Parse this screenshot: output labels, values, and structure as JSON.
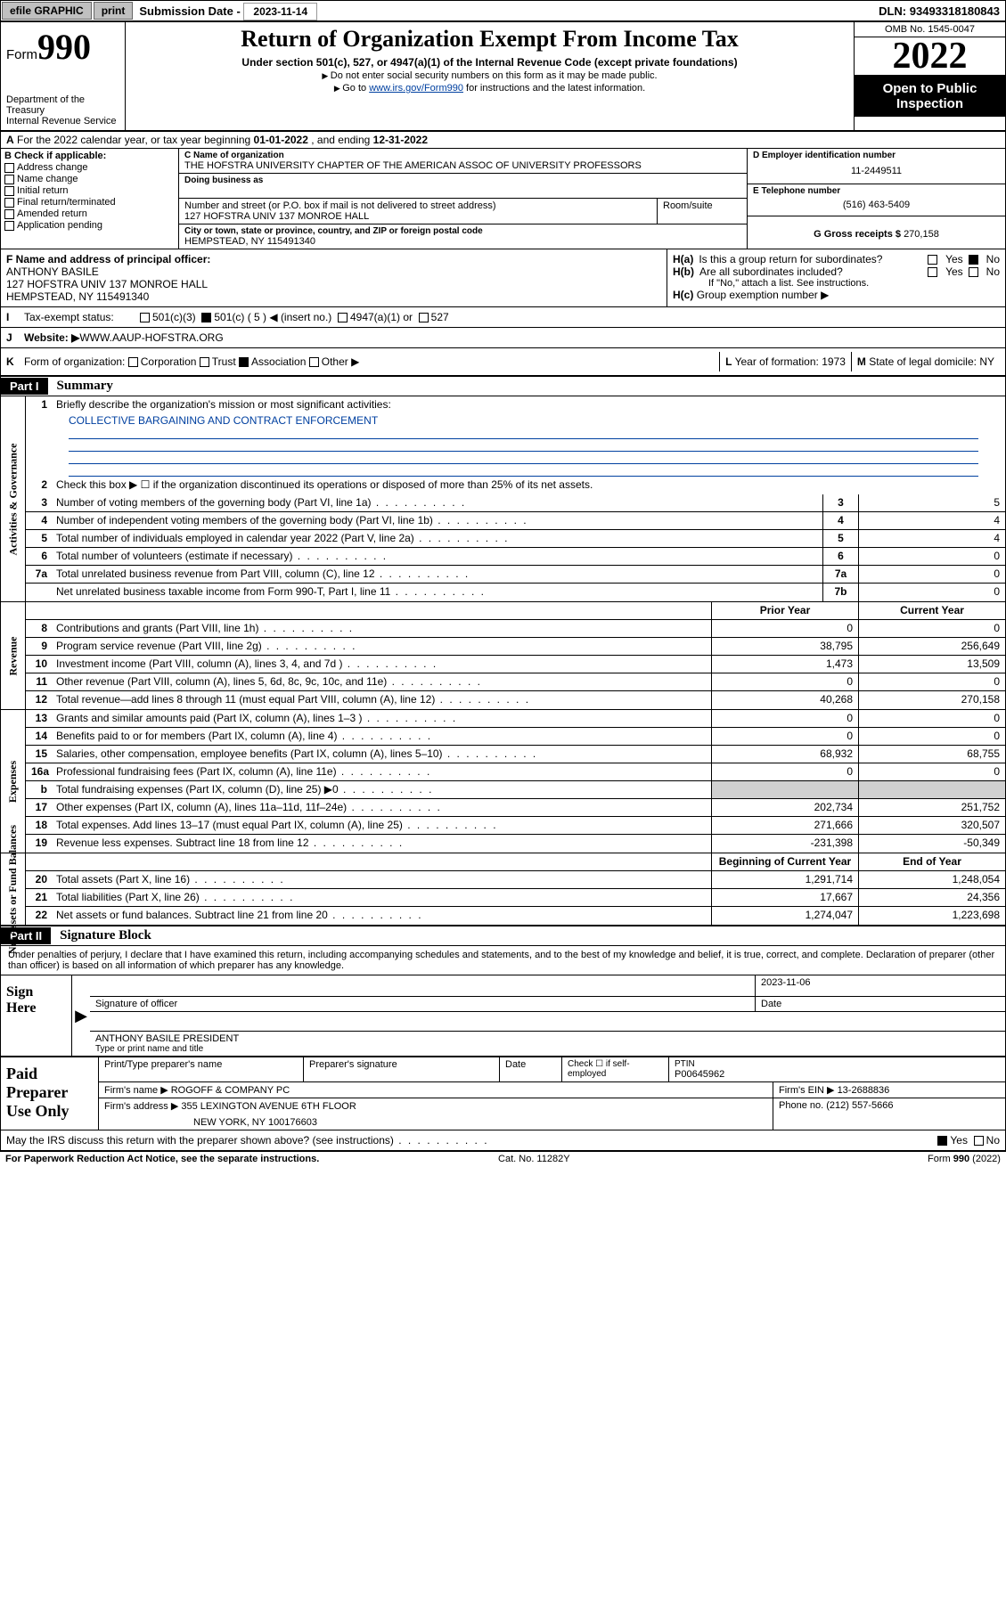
{
  "top": {
    "efile": "efile GRAPHIC",
    "print": "print",
    "sub_label": "Submission Date - ",
    "sub_date": "2023-11-14",
    "dln_label": "DLN: ",
    "dln": "93493318180843"
  },
  "header": {
    "form_label": "Form",
    "form_num": "990",
    "dept": "Department of the Treasury\nInternal Revenue Service",
    "title": "Return of Organization Exempt From Income Tax",
    "subtitle": "Under section 501(c), 527, or 4947(a)(1) of the Internal Revenue Code (except private foundations)",
    "note1": "Do not enter social security numbers on this form as it may be made public.",
    "note2_pre": "Go to ",
    "note2_link": "www.irs.gov/Form990",
    "note2_post": " for instructions and the latest information.",
    "omb": "OMB No. 1545-0047",
    "year": "2022",
    "otp": "Open to Public Inspection"
  },
  "line_a": {
    "prefix": "A",
    "text": "For the 2022 calendar year, or tax year beginning ",
    "begin": "01-01-2022",
    "mid": " , and ending ",
    "end": "12-31-2022"
  },
  "col_b": {
    "hdr": "B Check if applicable:",
    "items": [
      "Address change",
      "Name change",
      "Initial return",
      "Final return/terminated",
      "Amended return",
      "Application pending"
    ]
  },
  "col_c": {
    "name_lbl": "C Name of organization",
    "name": "THE HOFSTRA UNIVERSITY CHAPTER OF THE AMERICAN ASSOC OF UNIVERSITY PROFESSORS",
    "dba_lbl": "Doing business as",
    "addr_lbl": "Number and street (or P.O. box if mail is not delivered to street address)",
    "room_lbl": "Room/suite",
    "addr": "127 HOFSTRA UNIV 137 MONROE HALL",
    "city_lbl": "City or town, state or province, country, and ZIP or foreign postal code",
    "city": "HEMPSTEAD, NY  115491340"
  },
  "col_d": {
    "ein_lbl": "D Employer identification number",
    "ein": "11-2449511",
    "tel_lbl": "E Telephone number",
    "tel": "(516) 463-5409",
    "gross_lbl": "G Gross receipts $ ",
    "gross": "270,158"
  },
  "f": {
    "lbl": "F Name and address of principal officer:",
    "name": "ANTHONY BASILE",
    "addr1": "127 HOFSTRA UNIV 137 MONROE HALL",
    "addr2": "HEMPSTEAD, NY  115491340"
  },
  "h": {
    "a_lbl": "H(a)",
    "a_txt": "Is this a group return for subordinates?",
    "b_lbl": "H(b)",
    "b_txt": "Are all subordinates included?",
    "b_note": "If \"No,\" attach a list. See instructions.",
    "c_lbl": "H(c)",
    "c_txt": "Group exemption number ▶",
    "yes": "Yes",
    "no": "No"
  },
  "i": {
    "lbl": "I",
    "txt": "Tax-exempt status:",
    "o1": "501(c)(3)",
    "o2": "501(c) ( 5 ) ◀ (insert no.)",
    "o3": "4947(a)(1) or",
    "o4": "527"
  },
  "j": {
    "lbl": "J",
    "txt": "Website: ▶",
    "val": " WWW.AAUP-HOFSTRA.ORG"
  },
  "k": {
    "lbl": "K",
    "txt": "Form of organization:",
    "o1": "Corporation",
    "o2": "Trust",
    "o3": "Association",
    "o4": "Other ▶"
  },
  "l": {
    "lbl": "L",
    "txt": "Year of formation: ",
    "val": "1973"
  },
  "m": {
    "lbl": "M",
    "txt": "State of legal domicile: ",
    "val": "NY"
  },
  "p1": {
    "hdr": "Part I",
    "title": "Summary",
    "l1_lbl": "Briefly describe the organization's mission or most significant activities:",
    "l1_val": "COLLECTIVE BARGAINING AND CONTRACT ENFORCEMENT",
    "l2": "Check this box ▶ ☐  if the organization discontinued its operations or disposed of more than 25% of its net assets.",
    "side_ag": "Activities & Governance",
    "side_rev": "Revenue",
    "side_exp": "Expenses",
    "side_na": "Net Assets or Fund Balances",
    "rows_ag": [
      {
        "n": "3",
        "d": "Number of voting members of the governing body (Part VI, line 1a)",
        "box": "3",
        "v": "5"
      },
      {
        "n": "4",
        "d": "Number of independent voting members of the governing body (Part VI, line 1b)",
        "box": "4",
        "v": "4"
      },
      {
        "n": "5",
        "d": "Total number of individuals employed in calendar year 2022 (Part V, line 2a)",
        "box": "5",
        "v": "4"
      },
      {
        "n": "6",
        "d": "Total number of volunteers (estimate if necessary)",
        "box": "6",
        "v": "0"
      },
      {
        "n": "7a",
        "d": "Total unrelated business revenue from Part VIII, column (C), line 12",
        "box": "7a",
        "v": "0"
      },
      {
        "n": "",
        "d": "Net unrelated business taxable income from Form 990-T, Part I, line 11",
        "box": "7b",
        "v": "0"
      }
    ],
    "col_prior": "Prior Year",
    "col_current": "Current Year",
    "rows_rev": [
      {
        "n": "8",
        "d": "Contributions and grants (Part VIII, line 1h)",
        "p": "0",
        "c": "0"
      },
      {
        "n": "9",
        "d": "Program service revenue (Part VIII, line 2g)",
        "p": "38,795",
        "c": "256,649"
      },
      {
        "n": "10",
        "d": "Investment income (Part VIII, column (A), lines 3, 4, and 7d )",
        "p": "1,473",
        "c": "13,509"
      },
      {
        "n": "11",
        "d": "Other revenue (Part VIII, column (A), lines 5, 6d, 8c, 9c, 10c, and 11e)",
        "p": "0",
        "c": "0"
      },
      {
        "n": "12",
        "d": "Total revenue—add lines 8 through 11 (must equal Part VIII, column (A), line 12)",
        "p": "40,268",
        "c": "270,158"
      }
    ],
    "rows_exp": [
      {
        "n": "13",
        "d": "Grants and similar amounts paid (Part IX, column (A), lines 1–3 )",
        "p": "0",
        "c": "0"
      },
      {
        "n": "14",
        "d": "Benefits paid to or for members (Part IX, column (A), line 4)",
        "p": "0",
        "c": "0"
      },
      {
        "n": "15",
        "d": "Salaries, other compensation, employee benefits (Part IX, column (A), lines 5–10)",
        "p": "68,932",
        "c": "68,755"
      },
      {
        "n": "16a",
        "d": "Professional fundraising fees (Part IX, column (A), line 11e)",
        "p": "0",
        "c": "0"
      },
      {
        "n": "b",
        "d": "Total fundraising expenses (Part IX, column (D), line 25) ▶0",
        "p": "",
        "c": "",
        "gray": true
      },
      {
        "n": "17",
        "d": "Other expenses (Part IX, column (A), lines 11a–11d, 11f–24e)",
        "p": "202,734",
        "c": "251,752"
      },
      {
        "n": "18",
        "d": "Total expenses. Add lines 13–17 (must equal Part IX, column (A), line 25)",
        "p": "271,666",
        "c": "320,507"
      },
      {
        "n": "19",
        "d": "Revenue less expenses. Subtract line 18 from line 12",
        "p": "-231,398",
        "c": "-50,349"
      }
    ],
    "col_begin": "Beginning of Current Year",
    "col_end": "End of Year",
    "rows_na": [
      {
        "n": "20",
        "d": "Total assets (Part X, line 16)",
        "p": "1,291,714",
        "c": "1,248,054"
      },
      {
        "n": "21",
        "d": "Total liabilities (Part X, line 26)",
        "p": "17,667",
        "c": "24,356"
      },
      {
        "n": "22",
        "d": "Net assets or fund balances. Subtract line 21 from line 20",
        "p": "1,274,047",
        "c": "1,223,698"
      }
    ]
  },
  "p2": {
    "hdr": "Part II",
    "title": "Signature Block",
    "decl": "Under penalties of perjury, I declare that I have examined this return, including accompanying schedules and statements, and to the best of my knowledge and belief, it is true, correct, and complete. Declaration of preparer (other than officer) is based on all information of which preparer has any knowledge."
  },
  "sign": {
    "lbl": "Sign Here",
    "sig_lbl": "Signature of officer",
    "date_lbl": "Date",
    "date": "2023-11-06",
    "name": "ANTHONY BASILE PRESIDENT",
    "name_lbl": "Type or print name and title"
  },
  "prep": {
    "lbl": "Paid Preparer Use Only",
    "c1": "Print/Type preparer's name",
    "c2": "Preparer's signature",
    "c3": "Date",
    "c4_pre": "Check ☐ if self-employed",
    "c5_lbl": "PTIN",
    "c5": "P00645962",
    "firm_lbl": "Firm's name    ▶ ",
    "firm": "ROGOFF & COMPANY PC",
    "ein_lbl": "Firm's EIN ▶ ",
    "ein": "13-2688836",
    "addr_lbl": "Firm's address ▶ ",
    "addr1": "355 LEXINGTON AVENUE 6TH FLOOR",
    "addr2": "NEW YORK, NY  100176603",
    "phone_lbl": "Phone no. ",
    "phone": "(212) 557-5666"
  },
  "discuss": {
    "txt": "May the IRS discuss this return with the preparer shown above? (see instructions)",
    "yes": "Yes",
    "no": "No"
  },
  "foot": {
    "l": "For Paperwork Reduction Act Notice, see the separate instructions.",
    "m": "Cat. No. 11282Y",
    "r_pre": "Form ",
    "r_b": "990",
    "r_post": " (2022)"
  }
}
